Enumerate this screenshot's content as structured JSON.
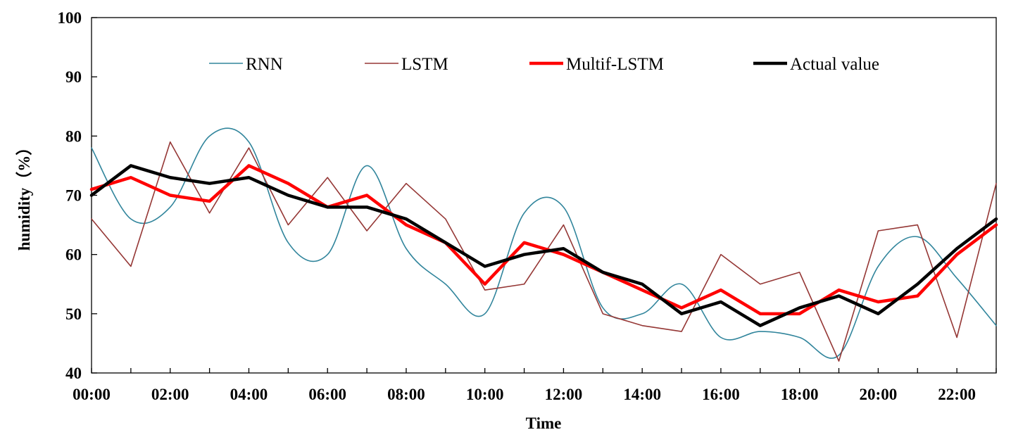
{
  "chart_data": {
    "type": "line",
    "title": "",
    "xlabel": "Time",
    "ylabel": "humidity（%）",
    "ylim": [
      40,
      100
    ],
    "yticks": [
      40,
      50,
      60,
      70,
      80,
      90,
      100
    ],
    "x": [
      "00:00",
      "01:00",
      "02:00",
      "03:00",
      "04:00",
      "05:00",
      "06:00",
      "07:00",
      "08:00",
      "09:00",
      "10:00",
      "11:00",
      "12:00",
      "13:00",
      "14:00",
      "15:00",
      "16:00",
      "17:00",
      "18:00",
      "19:00",
      "20:00",
      "21:00",
      "22:00",
      "23:00"
    ],
    "xtick_labels": [
      "00:00",
      "02:00",
      "04:00",
      "06:00",
      "08:00",
      "10:00",
      "12:00",
      "14:00",
      "16:00",
      "18:00",
      "20:00",
      "22:00"
    ],
    "grid": false,
    "legend_position": "top",
    "series": [
      {
        "name": "RNN",
        "color": "#31859C",
        "width": 1.6,
        "smooth": true,
        "values": [
          78,
          66,
          68,
          80,
          79,
          62,
          60,
          75,
          61,
          55,
          50,
          67,
          68,
          51,
          50,
          55,
          46,
          47,
          46,
          43,
          58,
          63,
          56,
          48
        ]
      },
      {
        "name": "LSTM",
        "color": "#953735",
        "width": 1.6,
        "smooth": false,
        "values": [
          66,
          58,
          79,
          67,
          78,
          65,
          73,
          64,
          72,
          66,
          54,
          55,
          65,
          50,
          48,
          47,
          60,
          55,
          57,
          42,
          64,
          65,
          46,
          72
        ]
      },
      {
        "name": "Multif-LSTM",
        "color": "#FF0000",
        "width": 4.5,
        "smooth": false,
        "values": [
          71,
          73,
          70,
          69,
          75,
          72,
          68,
          70,
          65,
          62,
          55,
          62,
          60,
          57,
          54,
          51,
          54,
          50,
          50,
          54,
          52,
          53,
          60,
          65
        ]
      },
      {
        "name": "Actual value",
        "color": "#000000",
        "width": 4.5,
        "smooth": false,
        "values": [
          70,
          75,
          73,
          72,
          73,
          70,
          68,
          68,
          66,
          62,
          58,
          60,
          61,
          57,
          55,
          50,
          52,
          48,
          51,
          53,
          50,
          55,
          61,
          66
        ]
      }
    ]
  }
}
